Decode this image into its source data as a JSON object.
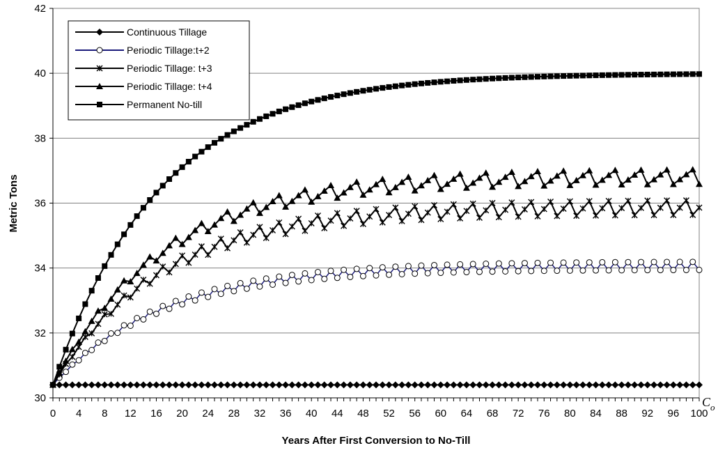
{
  "chart_data": {
    "type": "line",
    "title": "",
    "xlabel": "Years After First Conversion to No-Till",
    "ylabel": "Metric Tons",
    "xlim": [
      0,
      100
    ],
    "ylim": [
      30,
      42
    ],
    "x_ticks": [
      0,
      4,
      8,
      12,
      16,
      20,
      24,
      28,
      32,
      36,
      40,
      44,
      48,
      52,
      56,
      60,
      64,
      68,
      72,
      76,
      80,
      84,
      88,
      92,
      96,
      100
    ],
    "y_ticks": [
      30,
      32,
      34,
      36,
      38,
      40,
      42
    ],
    "grid": "horizontal",
    "legend_position": "top-left",
    "annotation": {
      "text": "C",
      "subscript": "o"
    },
    "series": [
      {
        "name": "Continuous Tillage",
        "marker": "diamond",
        "color": "#000000",
        "model": {
          "kind": "constant",
          "c0": 30.4
        }
      },
      {
        "name": "Periodic Tillage:t+2",
        "marker": "circle-open",
        "color": "#1a1a7a",
        "model": {
          "kind": "periodic",
          "c0": 30.4,
          "cmax": 40.0,
          "k": 0.06,
          "period": 2,
          "eq_low": 33.95,
          "eq_high": 34.2
        }
      },
      {
        "name": "Periodic Tillage: t+3",
        "marker": "x-star",
        "color": "#000000",
        "model": {
          "kind": "periodic",
          "c0": 30.4,
          "cmax": 40.0,
          "k": 0.06,
          "period": 3,
          "eq_low": 35.65,
          "eq_high": 36.1
        }
      },
      {
        "name": "Periodic Tillage: t+4",
        "marker": "triangle",
        "color": "#000000",
        "model": {
          "kind": "periodic",
          "c0": 30.4,
          "cmax": 40.0,
          "k": 0.06,
          "period": 4,
          "eq_low": 36.6,
          "eq_high": 37.05
        }
      },
      {
        "name": "Permanent No-till",
        "marker": "square",
        "color": "#000000",
        "model": {
          "kind": "saturating",
          "c0": 30.4,
          "cmax": 40.0,
          "k": 0.06
        }
      }
    ]
  }
}
